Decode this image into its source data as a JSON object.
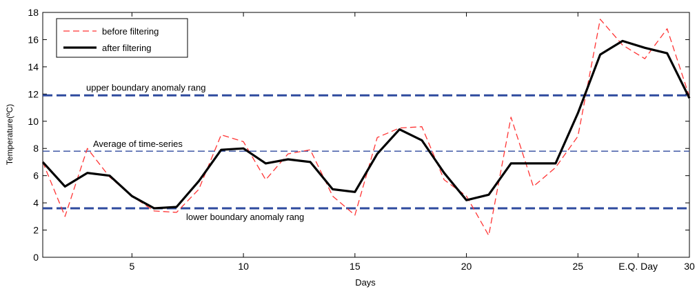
{
  "chart_data": {
    "type": "line",
    "title": "",
    "xlabel": "Days",
    "ylabel": "Temperature(ºC)",
    "xlim": [
      1,
      30
    ],
    "ylim": [
      0,
      18
    ],
    "xticks": [
      5,
      10,
      15,
      20,
      25,
      30
    ],
    "extra_xtick_label": {
      "x": 27.7,
      "label": "E.Q. Day"
    },
    "yticks": [
      0,
      2,
      4,
      6,
      8,
      10,
      12,
      14,
      16,
      18
    ],
    "grid": false,
    "legend": {
      "position": "top-left",
      "entries": [
        "before filtering",
        "after filtering"
      ]
    },
    "series": [
      {
        "name": "before filtering",
        "color": "#ff3333",
        "style": "dashed",
        "x": [
          1,
          2,
          3,
          4,
          5,
          6,
          7,
          8,
          9,
          10,
          11,
          12,
          13,
          14,
          15,
          16,
          17,
          18,
          19,
          20,
          21,
          22,
          23,
          24,
          25,
          26,
          27,
          28,
          29,
          30
        ],
        "y": [
          7.0,
          3.0,
          8.0,
          5.9,
          4.5,
          3.4,
          3.3,
          5.0,
          9.0,
          8.5,
          5.7,
          7.6,
          7.9,
          4.5,
          3.1,
          8.8,
          9.5,
          9.6,
          5.7,
          4.5,
          1.6,
          10.3,
          5.2,
          6.6,
          8.9,
          17.5,
          15.6,
          14.6,
          16.8,
          11.8
        ]
      },
      {
        "name": "after filtering",
        "color": "#000000",
        "style": "solid",
        "x": [
          1,
          2,
          3,
          4,
          5,
          6,
          7,
          8,
          9,
          10,
          11,
          12,
          13,
          14,
          15,
          16,
          17,
          18,
          19,
          20,
          21,
          22,
          23,
          24,
          25,
          26,
          27,
          28,
          29,
          30
        ],
        "y": [
          7.0,
          5.2,
          6.2,
          6.0,
          4.5,
          3.6,
          3.7,
          5.6,
          7.9,
          8.0,
          6.9,
          7.2,
          7.0,
          5.0,
          4.8,
          7.6,
          9.4,
          8.6,
          6.2,
          4.2,
          4.6,
          6.9,
          6.9,
          6.9,
          10.6,
          14.9,
          15.9,
          15.4,
          15.0,
          11.7
        ]
      }
    ],
    "reference_lines": [
      {
        "label": "upper boundary anomaly rang",
        "y": 11.9,
        "color": "#2e4a9e",
        "style": "bold-dashed"
      },
      {
        "label": "Average of time-series",
        "y": 7.8,
        "color": "#2e4a9e",
        "style": "thin-dashed"
      },
      {
        "label": "lower boundary anomaly rang",
        "y": 3.6,
        "color": "#2e4a9e",
        "style": "bold-dashed"
      }
    ]
  }
}
